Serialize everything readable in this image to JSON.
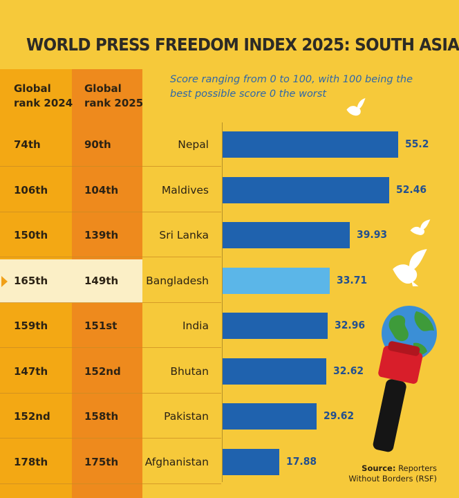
{
  "title": "WORLD PRESS FREEDOM INDEX 2025: SOUTH ASIA",
  "header": {
    "col2024_line1": "Global",
    "col2024_line2": "rank 2024",
    "col2025_line1": "Global",
    "col2025_line2": "rank 2025"
  },
  "note": "Score ranging from 0 to 100, with 100 being the best possible score 0 the worst",
  "source": {
    "label": "Source:",
    "line1": "Reporters",
    "line2": "Without Borders (RSF)"
  },
  "colors": {
    "background": "#F6C93A",
    "col2024": "#F3A814",
    "col2025": "#EE8A1D",
    "bar": "#1F62AE",
    "bar_highlight": "#5BB6E8",
    "value_text": "#23508F"
  },
  "chart_data": {
    "type": "bar",
    "orientation": "horizontal",
    "categories": [
      "Nepal",
      "Maldives",
      "Sri Lanka",
      "Bangladesh",
      "India",
      "Bhutan",
      "Pakistan",
      "Afghanistan"
    ],
    "values": [
      55.2,
      52.46,
      39.93,
      33.71,
      32.96,
      32.62,
      29.62,
      17.88
    ],
    "value_labels": [
      "55.2",
      "52.46",
      "39.93",
      "33.71",
      "32.96",
      "32.62",
      "29.62",
      "17.88"
    ],
    "rank_2024": [
      "74th",
      "106th",
      "150th",
      "165th",
      "159th",
      "147th",
      "152nd",
      "178th"
    ],
    "rank_2025": [
      "90th",
      "104th",
      "139th",
      "149th",
      "151st",
      "152nd",
      "158th",
      "175th"
    ],
    "highlight": "Bangladesh",
    "xlim": [
      0,
      100
    ],
    "grid": false,
    "legend": "none"
  }
}
